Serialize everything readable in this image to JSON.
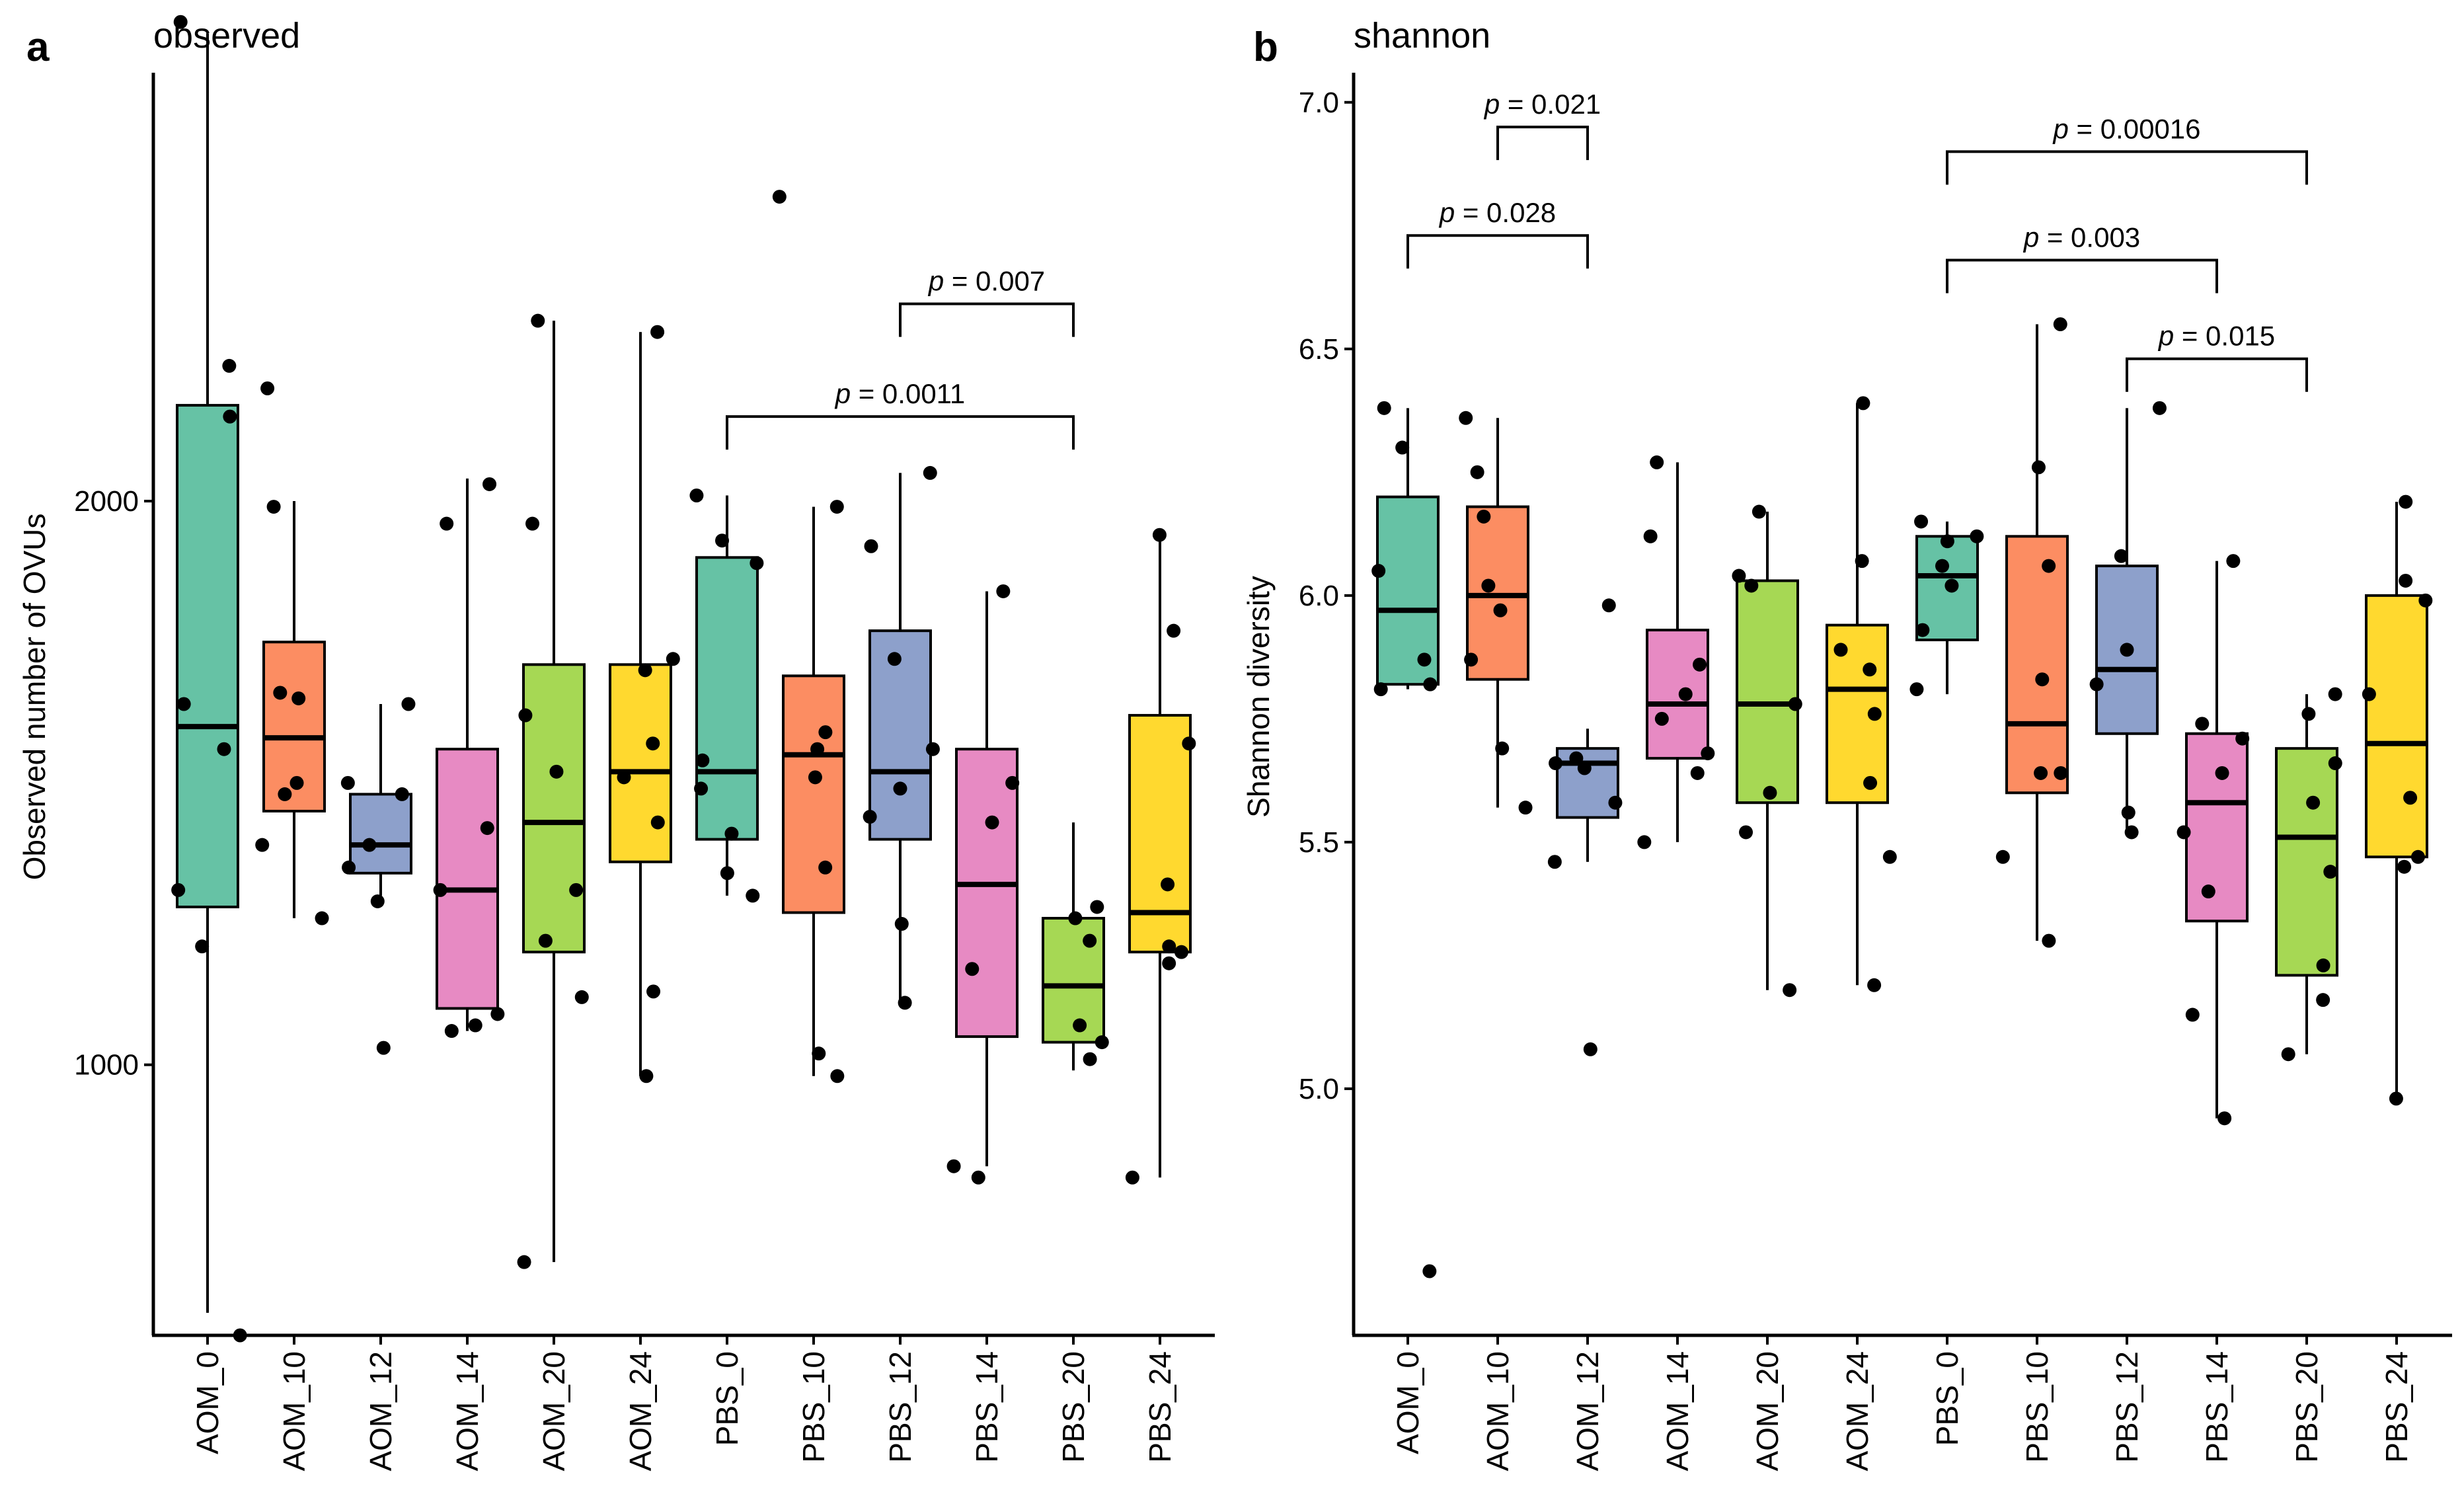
{
  "chart_data": [
    {
      "type": "boxplot",
      "panel_label": "a",
      "title": "observed",
      "ylabel": "Observed number of OVUs",
      "xlabel": "",
      "ylim": [
        520,
        2760
      ],
      "yticks": [
        1000,
        2000
      ],
      "ytick_labels": [
        "1000",
        "2000"
      ],
      "categories": [
        "AOM_0",
        "AOM_10",
        "AOM_12",
        "AOM_14",
        "AOM_20",
        "AOM_24",
        "PBS_0",
        "PBS_10",
        "PBS_12",
        "PBS_14",
        "PBS_20",
        "PBS_24"
      ],
      "colors": [
        "#66C2A5",
        "#FC8D62",
        "#8DA0CB",
        "#E78AC3",
        "#A6D854",
        "#FFD92F",
        "#66C2A5",
        "#FC8D62",
        "#8DA0CB",
        "#E78AC3",
        "#A6D854",
        "#FFD92F"
      ],
      "boxes": [
        {
          "whisker_low": 560,
          "q1": 1280,
          "median": 1600,
          "q3": 2170,
          "whisker_high": 2830
        },
        {
          "whisker_low": 1260,
          "q1": 1450,
          "median": 1580,
          "q3": 1750,
          "whisker_high": 2000
        },
        {
          "whisker_low": 1300,
          "q1": 1340,
          "median": 1390,
          "q3": 1480,
          "whisker_high": 1640
        },
        {
          "whisker_low": 1060,
          "q1": 1100,
          "median": 1310,
          "q3": 1560,
          "whisker_high": 2040
        },
        {
          "whisker_low": 650,
          "q1": 1200,
          "median": 1430,
          "q3": 1710,
          "whisker_high": 2320
        },
        {
          "whisker_low": 980,
          "q1": 1360,
          "median": 1520,
          "q3": 1710,
          "whisker_high": 2300
        },
        {
          "whisker_low": 1300,
          "q1": 1400,
          "median": 1520,
          "q3": 1900,
          "whisker_high": 2010
        },
        {
          "whisker_low": 980,
          "q1": 1270,
          "median": 1550,
          "q3": 1690,
          "whisker_high": 1990
        },
        {
          "whisker_low": 1110,
          "q1": 1400,
          "median": 1520,
          "q3": 1770,
          "whisker_high": 2050
        },
        {
          "whisker_low": 820,
          "q1": 1050,
          "median": 1320,
          "q3": 1560,
          "whisker_high": 1840
        },
        {
          "whisker_low": 990,
          "q1": 1040,
          "median": 1140,
          "q3": 1260,
          "whisker_high": 1430
        },
        {
          "whisker_low": 800,
          "q1": 1200,
          "median": 1270,
          "q3": 1620,
          "whisker_high": 1940
        }
      ],
      "points": [
        [
          1560,
          1310,
          1210,
          2150,
          1640,
          2240,
          2850,
          520
        ],
        [
          1650,
          1480,
          1660,
          1500,
          2200,
          1390,
          1260,
          1990
        ],
        [
          1290,
          1390,
          1640,
          1350,
          1480,
          1500,
          1030
        ],
        [
          1060,
          1090,
          1070,
          1310,
          1960,
          2030,
          1420
        ],
        [
          1310,
          1520,
          1120,
          2320,
          1960,
          1620,
          1220,
          650
        ],
        [
          1430,
          1700,
          1130,
          1720,
          1570,
          1510,
          2300,
          980
        ],
        [
          1340,
          1410,
          1490,
          1930,
          1890,
          1540,
          2010,
          1300
        ],
        [
          1510,
          1020,
          980,
          2540,
          1590,
          1350,
          1990,
          1560
        ],
        [
          1250,
          1110,
          1440,
          1490,
          1560,
          1720,
          2050,
          1920
        ],
        [
          820,
          800,
          1170,
          1430,
          1500,
          1840
        ],
        [
          1070,
          1040,
          1010,
          1220,
          1260,
          1280
        ],
        [
          1320,
          1200,
          1210,
          1180,
          1570,
          1770,
          800,
          1940
        ]
      ],
      "significance": [
        {
          "from": "PBS_0",
          "to": "PBS_20",
          "label": "p = 0.0011",
          "y": 2150
        },
        {
          "from": "PBS_12",
          "to": "PBS_20",
          "label": "p = 0.007",
          "y": 2350
        }
      ]
    },
    {
      "type": "boxplot",
      "panel_label": "b",
      "title": "shannon",
      "ylabel": "Shannon diversity",
      "xlabel": "",
      "ylim": [
        4.5,
        7.06
      ],
      "yticks": [
        5.0,
        5.5,
        6.0,
        6.5,
        7.0
      ],
      "ytick_labels": [
        "5.0",
        "5.5",
        "6.0",
        "6.5",
        "7.0"
      ],
      "categories": [
        "AOM_0",
        "AOM_10",
        "AOM_12",
        "AOM_14",
        "AOM_20",
        "AOM_24",
        "PBS_0",
        "PBS_10",
        "PBS_12",
        "PBS_14",
        "PBS_20",
        "PBS_24"
      ],
      "colors": [
        "#66C2A5",
        "#FC8D62",
        "#8DA0CB",
        "#E78AC3",
        "#A6D854",
        "#FFD92F",
        "#66C2A5",
        "#FC8D62",
        "#8DA0CB",
        "#E78AC3",
        "#A6D854",
        "#FFD92F"
      ],
      "boxes": [
        {
          "whisker_low": 5.81,
          "q1": 5.82,
          "median": 5.97,
          "q3": 6.2,
          "whisker_high": 6.38
        },
        {
          "whisker_low": 5.57,
          "q1": 5.83,
          "median": 6.0,
          "q3": 6.18,
          "whisker_high": 6.36
        },
        {
          "whisker_low": 5.46,
          "q1": 5.55,
          "median": 5.66,
          "q3": 5.69,
          "whisker_high": 5.73
        },
        {
          "whisker_low": 5.5,
          "q1": 5.67,
          "median": 5.78,
          "q3": 5.93,
          "whisker_high": 6.27
        },
        {
          "whisker_low": 5.2,
          "q1": 5.58,
          "median": 5.78,
          "q3": 6.03,
          "whisker_high": 6.17
        },
        {
          "whisker_low": 5.21,
          "q1": 5.58,
          "median": 5.81,
          "q3": 5.94,
          "whisker_high": 6.39
        },
        {
          "whisker_low": 5.8,
          "q1": 5.91,
          "median": 6.04,
          "q3": 6.12,
          "whisker_high": 6.15
        },
        {
          "whisker_low": 5.3,
          "q1": 5.6,
          "median": 5.74,
          "q3": 6.12,
          "whisker_high": 6.55
        },
        {
          "whisker_low": 5.52,
          "q1": 5.72,
          "median": 5.85,
          "q3": 6.06,
          "whisker_high": 6.38
        },
        {
          "whisker_low": 4.94,
          "q1": 5.34,
          "median": 5.58,
          "q3": 5.72,
          "whisker_high": 6.07
        },
        {
          "whisker_low": 5.07,
          "q1": 5.23,
          "median": 5.51,
          "q3": 5.69,
          "whisker_high": 5.8
        },
        {
          "whisker_low": 4.99,
          "q1": 5.47,
          "median": 5.7,
          "q3": 6.0,
          "whisker_high": 6.19
        }
      ],
      "points": [
        [
          5.87,
          6.05,
          6.3,
          5.82,
          6.38,
          4.63,
          5.81
        ],
        [
          5.69,
          6.02,
          6.16,
          5.97,
          5.87,
          6.36,
          5.57,
          6.25
        ],
        [
          5.65,
          5.67,
          5.58,
          5.66,
          5.98,
          5.46,
          5.08
        ],
        [
          5.75,
          5.68,
          5.8,
          6.12,
          6.27,
          5.86,
          5.64,
          5.5
        ],
        [
          5.2,
          5.6,
          5.78,
          6.02,
          5.52,
          6.04,
          6.17
        ],
        [
          5.76,
          6.07,
          5.62,
          5.47,
          5.85,
          5.89,
          5.21,
          6.39
        ],
        [
          6.11,
          6.02,
          6.15,
          6.06,
          6.12,
          5.93,
          5.81
        ],
        [
          6.26,
          5.83,
          5.64,
          5.47,
          5.3,
          6.06,
          6.55,
          5.64
        ],
        [
          5.56,
          5.52,
          5.82,
          5.89,
          6.38,
          6.08
        ],
        [
          5.52,
          5.4,
          5.74,
          5.64,
          5.71,
          6.07,
          5.15,
          4.94
        ],
        [
          5.58,
          5.66,
          5.25,
          5.18,
          5.76,
          5.44,
          5.8,
          5.07
        ],
        [
          5.45,
          5.47,
          6.19,
          6.03,
          5.99,
          5.59,
          5.8,
          4.98
        ]
      ],
      "significance": [
        {
          "from": "AOM_0",
          "to": "AOM_12",
          "label": "p = 0.028",
          "y": 6.73
        },
        {
          "from": "AOM_10",
          "to": "AOM_12",
          "label": "p = 0.021",
          "y": 6.95
        },
        {
          "from": "PBS_0",
          "to": "PBS_14",
          "label": "p = 0.003",
          "y": 6.68
        },
        {
          "from": "PBS_0",
          "to": "PBS_20",
          "label": "p = 0.00016",
          "y": 6.9
        },
        {
          "from": "PBS_12",
          "to": "PBS_20",
          "label": "p = 0.015",
          "y": 6.48
        }
      ]
    }
  ]
}
